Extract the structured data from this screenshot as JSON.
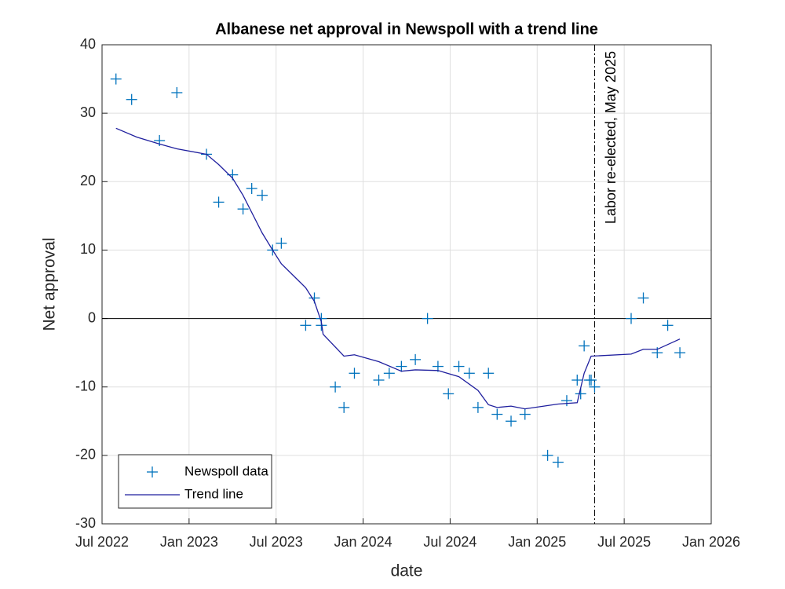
{
  "chart_data": {
    "type": "scatter",
    "title": "Albanese net approval in Newspoll with a trend line",
    "x_label": "date",
    "y_label": "Net approval",
    "xlim": [
      2022.5,
      2026
    ],
    "xticks": [
      {
        "value": 2022.5,
        "label": "Jul 2022"
      },
      {
        "value": 2023,
        "label": "Jan 2023"
      },
      {
        "value": 2023.5,
        "label": "Jul 2023"
      },
      {
        "value": 2024,
        "label": "Jan 2024"
      },
      {
        "value": 2024.5,
        "label": "Jul 2024"
      },
      {
        "value": 2025,
        "label": "Jan 2025"
      },
      {
        "value": 2025.5,
        "label": "Jul 2025"
      },
      {
        "value": 2026,
        "label": "Jan 2026"
      }
    ],
    "ylim": [
      -30,
      40
    ],
    "yticks": [
      -30,
      -20,
      -10,
      0,
      10,
      20,
      30,
      40
    ],
    "grid": true,
    "zero_line": 0,
    "vline": {
      "x": 2025.33,
      "label": "Labor re-elected, May 2025"
    },
    "legend": "lower left",
    "series": [
      {
        "name": "Newspoll data",
        "color": "#0072bd",
        "mode": "markers",
        "x": [
          2022.58,
          2022.67,
          2022.83,
          2022.93,
          2023.1,
          2023.17,
          2023.25,
          2023.31,
          2023.36,
          2023.42,
          2023.48,
          2023.53,
          2023.67,
          2023.72,
          2023.76,
          2023.76,
          2023.84,
          2023.89,
          2023.95,
          2024.09,
          2024.15,
          2024.22,
          2024.3,
          2024.37,
          2024.43,
          2024.49,
          2024.55,
          2024.61,
          2024.66,
          2024.72,
          2024.77,
          2024.85,
          2024.93,
          2025.06,
          2025.12,
          2025.17,
          2025.23,
          2025.25,
          2025.27,
          2025.3,
          2025.31,
          2025.33,
          2025.54,
          2025.61,
          2025.69,
          2025.75,
          2025.82
        ],
        "values": [
          35,
          32,
          26,
          33,
          24,
          17,
          21,
          16,
          19,
          18,
          10,
          11,
          -1,
          3,
          -1,
          0,
          -10,
          -13,
          -8,
          -9,
          -8,
          -7,
          -6,
          0,
          -7,
          -11,
          -7,
          -8,
          -13,
          -8,
          -14,
          -15,
          -14,
          -20,
          -21,
          -12,
          -9,
          -11,
          -4,
          -9,
          -9,
          -10,
          0,
          3,
          -5,
          -1,
          -5
        ]
      },
      {
        "name": "Trend line",
        "color": "#1f1f9e",
        "mode": "line",
        "x": [
          2022.58,
          2022.7,
          2022.83,
          2022.93,
          2023.1,
          2023.17,
          2023.25,
          2023.31,
          2023.36,
          2023.42,
          2023.48,
          2023.53,
          2023.67,
          2023.72,
          2023.76,
          2023.77,
          2023.89,
          2023.95,
          2024.09,
          2024.22,
          2024.3,
          2024.43,
          2024.55,
          2024.66,
          2024.72,
          2024.77,
          2024.85,
          2024.93,
          2025.12,
          2025.23,
          2025.27,
          2025.31,
          2025.54,
          2025.61,
          2025.69,
          2025.82
        ],
        "values": [
          27.8,
          26.5,
          25.5,
          24.8,
          24,
          22.5,
          20.5,
          18,
          15.5,
          12.5,
          10,
          8,
          4.5,
          2.5,
          -0.5,
          -2.3,
          -5.5,
          -5.3,
          -6.3,
          -7.7,
          -7.5,
          -7.6,
          -8.5,
          -10.5,
          -12.6,
          -13,
          -12.8,
          -13.2,
          -12.5,
          -12.3,
          -8,
          -5.5,
          -5.2,
          -4.5,
          -4.5,
          -3
        ]
      }
    ]
  }
}
